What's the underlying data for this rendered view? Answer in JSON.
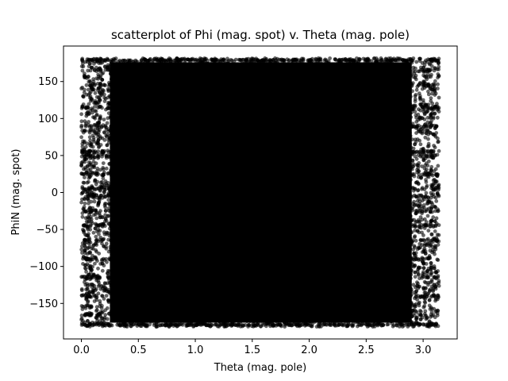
{
  "chart_data": {
    "type": "scatter",
    "title": "scatterplot of Phi (mag. spot) v. Theta (mag. pole)",
    "xlabel": "Theta (mag. pole)",
    "ylabel": "PhiN (mag. spot)",
    "xlim": [
      -0.157,
      3.299
    ],
    "ylim": [
      -198,
      198
    ],
    "xticks": [
      0.0,
      0.5,
      1.0,
      1.5,
      2.0,
      2.5,
      3.0
    ],
    "xtick_labels": [
      "0.0",
      "0.5",
      "1.0",
      "1.5",
      "2.0",
      "2.5",
      "3.0"
    ],
    "yticks": [
      -150,
      -100,
      -50,
      0,
      50,
      100,
      150
    ],
    "ytick_labels": [
      "−150",
      "−100",
      "−50",
      "0",
      "50",
      "100",
      "150"
    ],
    "grid": false,
    "marker_color": "#000000",
    "marker_alpha": 0.6,
    "series": [
      {
        "point_count_approx": 60000,
        "x_range": [
          0.0,
          3.14
        ],
        "y_range": [
          -180,
          180
        ],
        "dense_rows_y": [
          180,
          178,
          -178,
          -180,
          50,
          55,
          -65,
          25,
          -25,
          165,
          -165,
          140,
          -140,
          115,
          -115,
          90,
          -90,
          5,
          -5,
          145,
          -45
        ]
      }
    ]
  }
}
